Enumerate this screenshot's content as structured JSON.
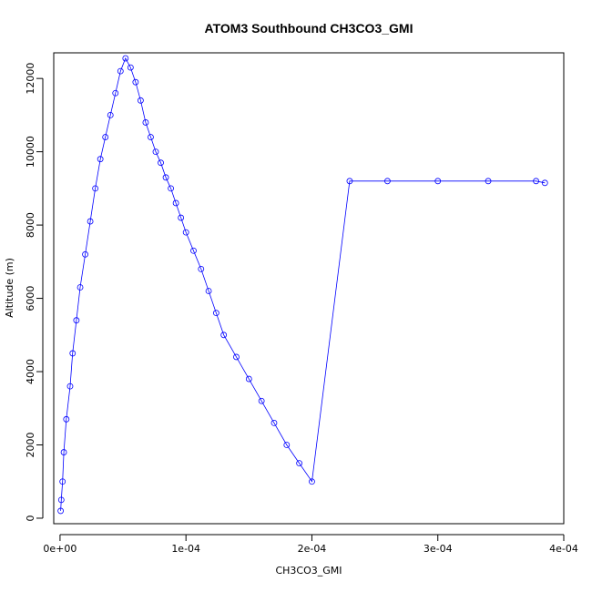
{
  "chart_data": {
    "type": "line",
    "title": "ATOM3 Southbound CH3CO3_GMI",
    "xlabel": "CH3CO3_GMI",
    "ylabel": "Altitude (m)",
    "xlim": [
      -5e-06,
      0.0004
    ],
    "ylim": [
      -150,
      12700
    ],
    "x_ticks": [
      0,
      0.0001,
      0.0002,
      0.0003,
      0.0004
    ],
    "x_tick_labels": [
      "0e+00",
      "1e-04",
      "2e-04",
      "3e-04",
      "4e-04"
    ],
    "y_ticks": [
      0,
      2000,
      4000,
      6000,
      8000,
      10000,
      12000
    ],
    "y_tick_labels": [
      "0",
      "2000",
      "4000",
      "6000",
      "8000",
      "10000",
      "12000"
    ],
    "series_color": "#0000ff",
    "markers": "open-circle",
    "lines": true,
    "grid": false,
    "legend": "none",
    "series": [
      {
        "name": "",
        "x": [
          5e-07,
          1e-06,
          2e-06,
          3e-06,
          5e-06,
          8e-06,
          1e-05,
          1.3e-05,
          1.6e-05,
          2e-05,
          2.4e-05,
          2.8e-05,
          3.2e-05,
          3.6e-05,
          4e-05,
          4.4e-05,
          4.8e-05,
          5.2e-05,
          5.6e-05,
          6e-05,
          6.4e-05,
          6.8e-05,
          7.2e-05,
          7.6e-05,
          8e-05,
          8.4e-05,
          8.8e-05,
          9.2e-05,
          9.6e-05,
          0.0001,
          0.000106,
          0.000112,
          0.000118,
          0.000124,
          0.00013,
          0.00014,
          0.00015,
          0.00016,
          0.00017,
          0.00018,
          0.00019,
          0.0002,
          0.00023,
          0.00026,
          0.0003,
          0.00034,
          0.000378,
          0.000385
        ],
        "y": [
          200,
          500,
          1000,
          1800,
          2700,
          3600,
          4500,
          5400,
          6300,
          7200,
          8100,
          9000,
          9800,
          10400,
          11000,
          11600,
          12200,
          12550,
          12300,
          11900,
          11400,
          10800,
          10400,
          10000,
          9700,
          9300,
          9000,
          8600,
          8200,
          7800,
          7300,
          6800,
          6200,
          5600,
          5000,
          4400,
          3800,
          3200,
          2600,
          2000,
          1500,
          1000,
          9200,
          9200,
          9200,
          9200,
          9200,
          9150
        ]
      }
    ]
  }
}
